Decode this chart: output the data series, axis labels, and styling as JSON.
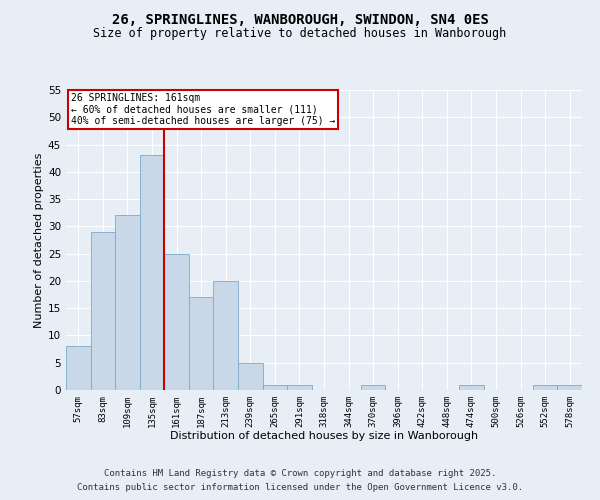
{
  "title1": "26, SPRINGLINES, WANBOROUGH, SWINDON, SN4 0ES",
  "title2": "Size of property relative to detached houses in Wanborough",
  "xlabel": "Distribution of detached houses by size in Wanborough",
  "ylabel": "Number of detached properties",
  "categories": [
    "57sqm",
    "83sqm",
    "109sqm",
    "135sqm",
    "161sqm",
    "187sqm",
    "213sqm",
    "239sqm",
    "265sqm",
    "291sqm",
    "318sqm",
    "344sqm",
    "370sqm",
    "396sqm",
    "422sqm",
    "448sqm",
    "474sqm",
    "500sqm",
    "526sqm",
    "552sqm",
    "578sqm"
  ],
  "values": [
    8,
    29,
    32,
    43,
    25,
    17,
    20,
    5,
    1,
    1,
    0,
    0,
    1,
    0,
    0,
    0,
    1,
    0,
    0,
    1,
    1
  ],
  "bar_color": "#c8d8e8",
  "bar_edge_color": "#7aaac8",
  "vline_color": "#cc0000",
  "annotation_title": "26 SPRINGLINES: 161sqm",
  "annotation_line2": "← 60% of detached houses are smaller (111)",
  "annotation_line3": "40% of semi-detached houses are larger (75) →",
  "annotation_box_color": "#ffffff",
  "annotation_box_edge": "#cc0000",
  "ylim": [
    0,
    55
  ],
  "yticks": [
    0,
    5,
    10,
    15,
    20,
    25,
    30,
    35,
    40,
    45,
    50,
    55
  ],
  "background_color": "#e8eef5",
  "grid_color": "#ffffff",
  "footer1": "Contains HM Land Registry data © Crown copyright and database right 2025.",
  "footer2": "Contains public sector information licensed under the Open Government Licence v3.0."
}
